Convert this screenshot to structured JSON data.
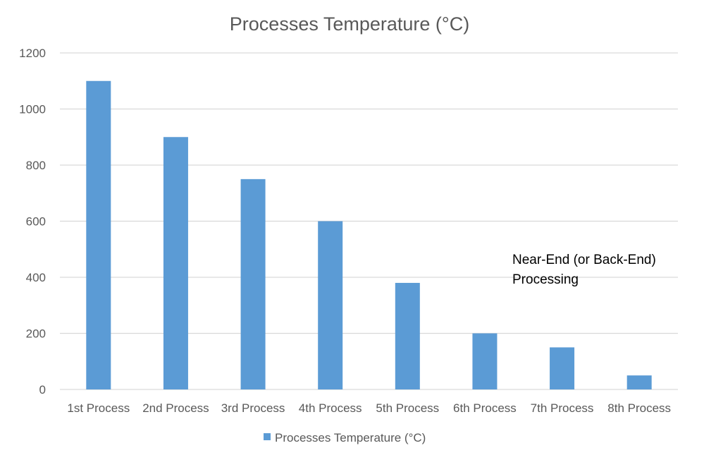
{
  "chart_data": {
    "type": "bar",
    "title": "Processes Temperature (°C)",
    "xlabel": "",
    "ylabel": "",
    "categories": [
      "1st Process",
      "2nd Process",
      "3rd Process",
      "4th Process",
      "5th Process",
      "6th Process",
      "7th Process",
      "8th Process"
    ],
    "series": [
      {
        "name": "Processes Temperature (°C)",
        "values": [
          1100,
          900,
          750,
          600,
          380,
          200,
          150,
          50
        ]
      }
    ],
    "ylim": [
      0,
      1200
    ],
    "yticks": [
      "0",
      "200",
      "400",
      "600",
      "800",
      "1000",
      "1200"
    ],
    "grid": true,
    "legend": "bottom",
    "annotation": {
      "lines": [
        "Near-End (or Back-End)",
        "Processing"
      ]
    },
    "colors": {
      "bar": "#5b9bd5",
      "grid": "#d9d9d9",
      "text": "#595959"
    }
  }
}
